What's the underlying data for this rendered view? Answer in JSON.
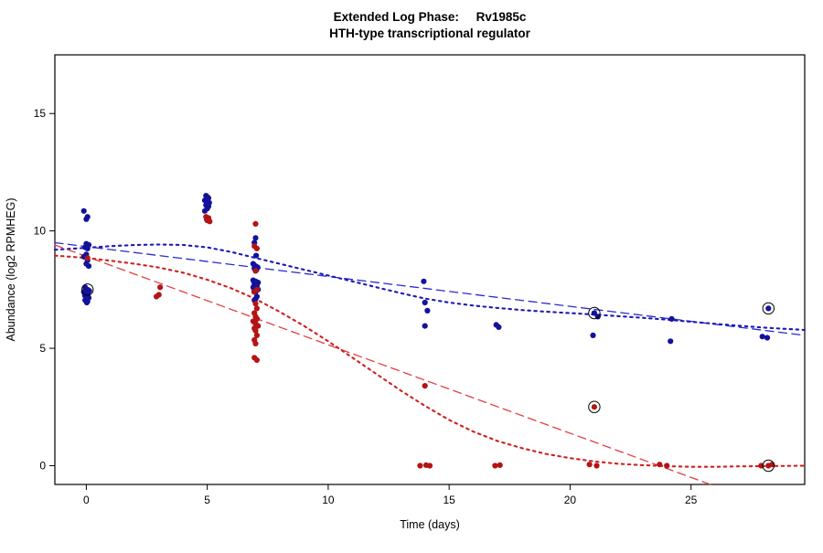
{
  "chart_data": {
    "type": "scatter",
    "title": "Extended Log Phase:     Rv1985c",
    "subtitle": "HTH-type transcriptional regulator",
    "xlabel": "Time  (days)",
    "ylabel": "Abundance  (log2 RPMHEG)",
    "xlim": [
      -1.3,
      29.7
    ],
    "ylim": [
      -0.8,
      17.5
    ],
    "xticks": [
      0,
      5,
      10,
      15,
      20,
      25
    ],
    "yticks": [
      0,
      5,
      10,
      15
    ],
    "grid": false,
    "legend": "none",
    "colors": {
      "blue_points": "#12129B",
      "red_points": "#B41414",
      "blue_dashed_line": "#2A2ACD",
      "blue_dotted_line": "#1A1AB8",
      "red_dashed_line": "#E04040",
      "red_dotted_line": "#D02020",
      "highlight_ring": "#000000"
    },
    "series": [
      {
        "name": "condition-blue",
        "color": "#12129B",
        "points": [
          [
            -0.1,
            10.85
          ],
          [
            0.05,
            10.6
          ],
          [
            0,
            10.5
          ],
          [
            0,
            9.45
          ],
          [
            0.1,
            9.4
          ],
          [
            -0.05,
            9.3
          ],
          [
            0.05,
            9.25
          ],
          [
            0,
            9.0
          ],
          [
            -0.1,
            8.9
          ],
          [
            0.05,
            8.75
          ],
          [
            0,
            8.6
          ],
          [
            0.1,
            8.5
          ],
          [
            -0.05,
            7.6
          ],
          [
            0.05,
            7.5
          ],
          [
            0.12,
            7.45
          ],
          [
            -0.1,
            7.4
          ],
          [
            0,
            7.35
          ],
          [
            0.06,
            7.3
          ],
          [
            -0.06,
            7.25
          ],
          [
            0,
            7.2
          ],
          [
            0.1,
            7.15
          ],
          [
            0,
            7.1
          ],
          [
            -0.05,
            7.05
          ],
          [
            0.05,
            7.0
          ],
          [
            0.02,
            6.95
          ],
          [
            4.95,
            11.5
          ],
          [
            5.0,
            11.45
          ],
          [
            5.05,
            11.4
          ],
          [
            4.9,
            11.3
          ],
          [
            5.0,
            11.25
          ],
          [
            5.08,
            11.2
          ],
          [
            4.95,
            11.1
          ],
          [
            5.05,
            11.05
          ],
          [
            5.0,
            10.95
          ],
          [
            4.9,
            10.85
          ],
          [
            4.98,
            10.5
          ],
          [
            7.0,
            9.7
          ],
          [
            6.95,
            9.5
          ],
          [
            7.02,
            8.95
          ],
          [
            6.9,
            8.6
          ],
          [
            7.0,
            8.5
          ],
          [
            7.08,
            8.45
          ],
          [
            6.95,
            8.4
          ],
          [
            7.04,
            8.35
          ],
          [
            7.0,
            8.3
          ],
          [
            6.9,
            7.9
          ],
          [
            7.0,
            7.85
          ],
          [
            7.1,
            7.8
          ],
          [
            6.95,
            7.75
          ],
          [
            7.0,
            7.7
          ],
          [
            7.05,
            7.65
          ],
          [
            6.9,
            7.6
          ],
          [
            7.0,
            7.55
          ],
          [
            7.1,
            7.5
          ],
          [
            6.95,
            7.45
          ],
          [
            7.0,
            7.4
          ],
          [
            7.05,
            7.2
          ],
          [
            7.0,
            7.1
          ],
          [
            6.95,
            7.05
          ],
          [
            13.95,
            7.85
          ],
          [
            14.0,
            6.95
          ],
          [
            14.1,
            6.6
          ],
          [
            14.0,
            5.95
          ],
          [
            16.95,
            6.0
          ],
          [
            17.05,
            5.9
          ],
          [
            21.0,
            6.5
          ],
          [
            21.15,
            6.35
          ],
          [
            20.95,
            5.55
          ],
          [
            24.2,
            6.25
          ],
          [
            24.15,
            5.3
          ],
          [
            28.2,
            6.7
          ],
          [
            27.95,
            5.5
          ],
          [
            28.15,
            5.45
          ]
        ]
      },
      {
        "name": "condition-red",
        "color": "#B41414",
        "points": [
          [
            0.05,
            8.85
          ],
          [
            2.9,
            7.2
          ],
          [
            3.0,
            7.28
          ],
          [
            3.05,
            7.6
          ],
          [
            4.95,
            10.6
          ],
          [
            5.05,
            10.55
          ],
          [
            5.0,
            10.45
          ],
          [
            5.1,
            10.4
          ],
          [
            7.0,
            10.3
          ],
          [
            6.95,
            9.35
          ],
          [
            7.05,
            9.25
          ],
          [
            7.0,
            8.3
          ],
          [
            7.06,
            7.5
          ],
          [
            6.94,
            7.4
          ],
          [
            7.0,
            6.9
          ],
          [
            7.05,
            6.7
          ],
          [
            6.95,
            6.5
          ],
          [
            7.0,
            6.35
          ],
          [
            7.06,
            6.25
          ],
          [
            6.9,
            6.15
          ],
          [
            7.0,
            6.05
          ],
          [
            7.1,
            5.95
          ],
          [
            6.95,
            5.85
          ],
          [
            7.0,
            5.75
          ],
          [
            7.05,
            5.55
          ],
          [
            6.95,
            5.35
          ],
          [
            7.0,
            5.2
          ],
          [
            6.95,
            4.6
          ],
          [
            7.05,
            4.5
          ],
          [
            14.0,
            3.4
          ],
          [
            13.8,
            0.0
          ],
          [
            14.05,
            0.02
          ],
          [
            14.2,
            0.0
          ],
          [
            16.9,
            0.0
          ],
          [
            17.1,
            0.02
          ],
          [
            21.0,
            2.5
          ],
          [
            20.8,
            0.05
          ],
          [
            21.1,
            0.0
          ],
          [
            23.7,
            0.05
          ],
          [
            24.0,
            0.0
          ],
          [
            27.9,
            0.0
          ],
          [
            28.2,
            0.0
          ],
          [
            28.35,
            0.05
          ]
        ]
      }
    ],
    "highlighted_points": [
      {
        "x": 0.05,
        "y": 7.5
      },
      {
        "x": 21.0,
        "y": 6.5
      },
      {
        "x": 21.0,
        "y": 2.5
      },
      {
        "x": 28.2,
        "y": 6.7
      },
      {
        "x": 28.2,
        "y": 0.0
      }
    ],
    "trend_lines": [
      {
        "name": "blue-linear-fit",
        "style": "dashed",
        "color": "#2A2ACD",
        "points": [
          [
            -1.3,
            9.5
          ],
          [
            29.7,
            5.55
          ]
        ]
      },
      {
        "name": "blue-smooth-fit",
        "style": "dotted",
        "color": "#1A1AB8",
        "points": [
          [
            -1.3,
            9.2
          ],
          [
            0,
            9.28
          ],
          [
            1,
            9.35
          ],
          [
            2,
            9.4
          ],
          [
            3,
            9.42
          ],
          [
            4,
            9.4
          ],
          [
            5,
            9.3
          ],
          [
            6,
            9.1
          ],
          [
            7,
            8.85
          ],
          [
            8,
            8.6
          ],
          [
            9,
            8.35
          ],
          [
            10,
            8.1
          ],
          [
            11,
            7.85
          ],
          [
            12,
            7.6
          ],
          [
            13,
            7.35
          ],
          [
            14,
            7.12
          ],
          [
            15,
            6.95
          ],
          [
            16,
            6.82
          ],
          [
            17,
            6.72
          ],
          [
            18,
            6.63
          ],
          [
            19,
            6.56
          ],
          [
            20,
            6.5
          ],
          [
            21,
            6.44
          ],
          [
            22,
            6.37
          ],
          [
            23,
            6.3
          ],
          [
            24,
            6.22
          ],
          [
            25,
            6.13
          ],
          [
            26,
            6.04
          ],
          [
            27,
            5.96
          ],
          [
            28,
            5.88
          ],
          [
            29.7,
            5.78
          ]
        ]
      },
      {
        "name": "red-linear-fit",
        "style": "dashed",
        "color": "#E04040",
        "points": [
          [
            -1.3,
            9.4
          ],
          [
            25.8,
            -0.8
          ]
        ]
      },
      {
        "name": "red-smooth-fit",
        "style": "dotted",
        "color": "#D02020",
        "points": [
          [
            -1.3,
            8.95
          ],
          [
            0,
            8.85
          ],
          [
            1,
            8.73
          ],
          [
            2,
            8.6
          ],
          [
            3,
            8.44
          ],
          [
            4,
            8.22
          ],
          [
            5,
            7.92
          ],
          [
            6,
            7.55
          ],
          [
            7,
            7.1
          ],
          [
            8,
            6.55
          ],
          [
            9,
            5.95
          ],
          [
            10,
            5.3
          ],
          [
            11,
            4.6
          ],
          [
            12,
            3.9
          ],
          [
            13,
            3.2
          ],
          [
            14,
            2.55
          ],
          [
            15,
            1.95
          ],
          [
            16,
            1.45
          ],
          [
            17,
            1.05
          ],
          [
            18,
            0.75
          ],
          [
            19,
            0.5
          ],
          [
            20,
            0.32
          ],
          [
            21,
            0.18
          ],
          [
            22,
            0.08
          ],
          [
            23,
            0.02
          ],
          [
            24,
            -0.02
          ],
          [
            25,
            -0.05
          ],
          [
            26,
            -0.05
          ],
          [
            27,
            -0.03
          ],
          [
            28,
            -0.02
          ],
          [
            29.7,
            0.0
          ]
        ]
      }
    ]
  }
}
